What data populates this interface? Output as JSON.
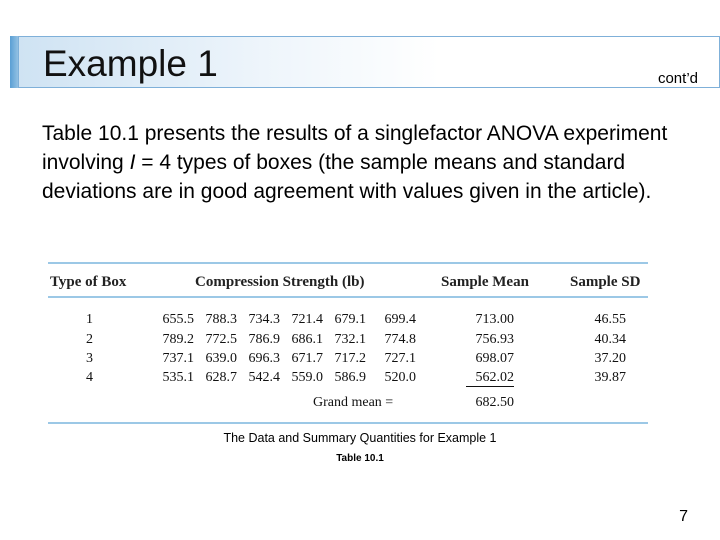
{
  "slide": {
    "title": "Example 1",
    "contd": "cont’d",
    "intro_part1": "Table 10.1 presents the results of a singlefactor ANOVA experiment involving ",
    "intro_I": "I",
    "intro_part2": " = 4 types of boxes (the sample means and standard deviations are in good agreement with values given in the article).",
    "page_number": "7"
  },
  "table": {
    "headers": [
      "Type of Box",
      "Compression Strength (lb)",
      "Sample Mean",
      "Sample SD"
    ],
    "rows": [
      {
        "type": "1",
        "values": [
          "655.5",
          "788.3",
          "734.3",
          "721.4",
          "679.1",
          "699.4"
        ],
        "mean": "713.00",
        "sd": "46.55"
      },
      {
        "type": "2",
        "values": [
          "789.2",
          "772.5",
          "786.9",
          "686.1",
          "732.1",
          "774.8"
        ],
        "mean": "756.93",
        "sd": "40.34"
      },
      {
        "type": "3",
        "values": [
          "737.1",
          "639.0",
          "696.3",
          "671.7",
          "717.2",
          "727.1"
        ],
        "mean": "698.07",
        "sd": "37.20"
      },
      {
        "type": "4",
        "values": [
          "535.1",
          "628.7",
          "542.4",
          "559.0",
          "586.9",
          "520.0"
        ],
        "mean": "562.02",
        "sd": "39.87"
      }
    ],
    "grand_mean_label": "Grand mean =",
    "grand_mean_value": "682.50"
  },
  "caption": {
    "line1": "The Data and Summary Quantities for Example 1",
    "line2": "Table 10.1"
  }
}
